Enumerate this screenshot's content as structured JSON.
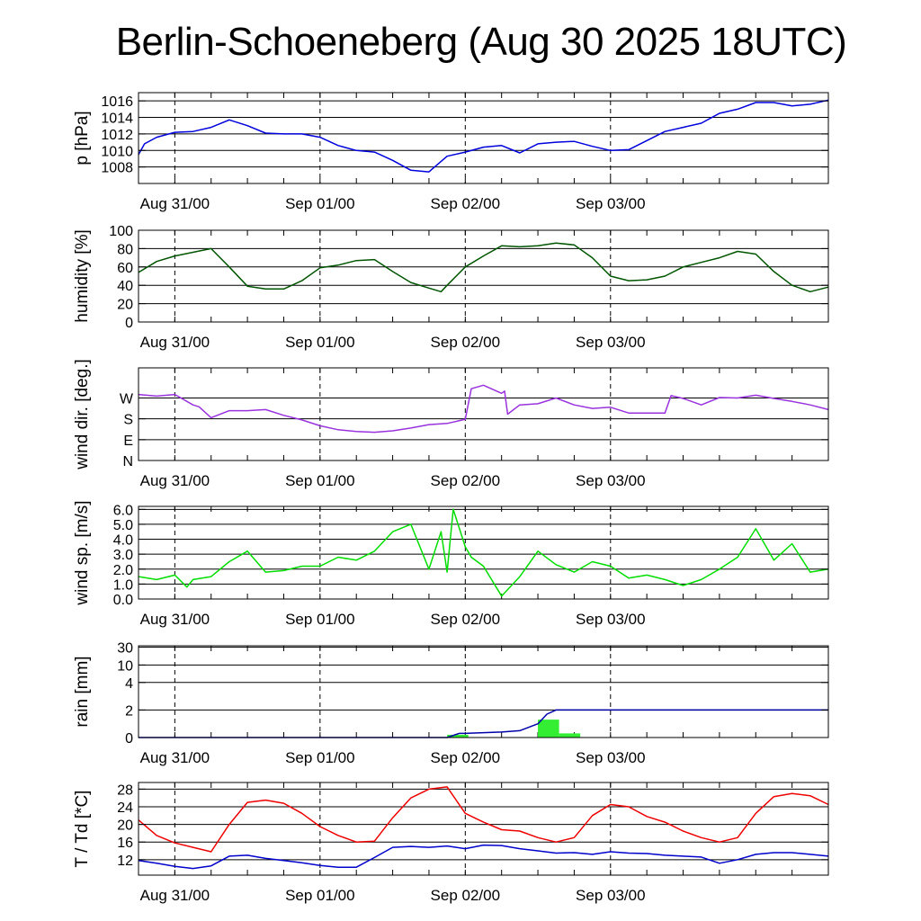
{
  "title": "Berlin-Schoeneberg (Aug 30 2025 18UTC)",
  "chart_data": [
    {
      "id": "pressure",
      "type": "line",
      "ylabel": "p [hPa]",
      "color": "#0000dd",
      "ylim": [
        1006,
        1017
      ],
      "yticks": [
        1008,
        1010,
        1012,
        1014,
        1016
      ],
      "ytick_labels": [
        "1008",
        "1010",
        "1012",
        "1014",
        "1016"
      ],
      "grid_lines": [
        1008,
        1010,
        1012,
        1014,
        1016
      ],
      "x": [
        0,
        1,
        3,
        6,
        9,
        12,
        15,
        18,
        21,
        24,
        27,
        30,
        33,
        36,
        39,
        42,
        45,
        48,
        51,
        54,
        57,
        60,
        63,
        66,
        69,
        72,
        75,
        78,
        81,
        84,
        87,
        90,
        93,
        96,
        99,
        102,
        105,
        108,
        111,
        114
      ],
      "y": [
        1009.5,
        1010.8,
        1011.6,
        1012.2,
        1012.3,
        1012.8,
        1013.7,
        1013.0,
        1012.1,
        1012.0,
        1012.0,
        1011.6,
        1010.6,
        1010.0,
        1009.8,
        1008.8,
        1007.6,
        1007.4,
        1009.3,
        1009.8,
        1010.4,
        1010.6,
        1009.7,
        1010.8,
        1011.0,
        1011.1,
        1010.5,
        1010.0,
        1010.1,
        1011.2,
        1012.3,
        1012.8,
        1013.3,
        1014.5,
        1015.0,
        1015.8,
        1015.8,
        1015.4,
        1015.6,
        1016.1
      ]
    },
    {
      "id": "humidity",
      "type": "line",
      "ylabel": "humidity [%]",
      "color": "#005500",
      "ylim": [
        0,
        100
      ],
      "yticks": [
        0,
        20,
        40,
        60,
        80,
        100
      ],
      "ytick_labels": [
        "0",
        "20",
        "40",
        "60",
        "80",
        "100"
      ],
      "grid_lines": [
        20,
        40,
        60,
        80
      ],
      "x": [
        0,
        3,
        6,
        9,
        12,
        15,
        18,
        21,
        24,
        27,
        30,
        33,
        36,
        39,
        42,
        45,
        48,
        50,
        51,
        54,
        57,
        60,
        63,
        66,
        69,
        72,
        75,
        78,
        81,
        84,
        87,
        90,
        93,
        96,
        99,
        102,
        105,
        108,
        111,
        114
      ],
      "y": [
        54,
        66,
        72,
        76,
        80,
        60,
        39,
        36,
        36,
        45,
        59,
        62,
        67,
        68,
        55,
        43,
        37,
        33,
        40,
        60,
        72,
        83,
        82,
        83,
        86,
        84,
        70,
        50,
        45,
        46,
        50,
        60,
        65,
        70,
        77,
        74,
        55,
        40,
        33,
        38
      ]
    },
    {
      "id": "wind_direction",
      "type": "line",
      "ylabel": "wind dir. [deg.]",
      "color": "#9933dd",
      "ylim": [
        0,
        400
      ],
      "yticks": [
        0,
        90,
        180,
        270
      ],
      "ytick_labels": [
        "N",
        "E",
        "S",
        "W"
      ],
      "grid_lines": [
        90,
        180,
        270
      ],
      "x": [
        0,
        3,
        6,
        9,
        10,
        12,
        15,
        18,
        21,
        24,
        27,
        30,
        33,
        36,
        39,
        42,
        45,
        48,
        51,
        54,
        55,
        57,
        60,
        60.5,
        61,
        63,
        66,
        69,
        72,
        75,
        78,
        81,
        84,
        87,
        88,
        90,
        93,
        96,
        99,
        102,
        105,
        108,
        111,
        114
      ],
      "y": [
        285,
        278,
        285,
        240,
        232,
        185,
        215,
        215,
        220,
        195,
        175,
        150,
        133,
        125,
        122,
        128,
        140,
        155,
        160,
        178,
        310,
        325,
        290,
        300,
        200,
        240,
        245,
        270,
        240,
        225,
        230,
        205,
        205,
        205,
        280,
        268,
        240,
        272,
        270,
        282,
        268,
        255,
        240,
        220
      ]
    },
    {
      "id": "wind_speed",
      "type": "line",
      "ylabel": "wind sp. [m/s]",
      "color": "#00dd00",
      "ylim": [
        0,
        6.2
      ],
      "yticks": [
        0,
        1,
        2,
        3,
        4,
        5,
        6
      ],
      "ytick_labels": [
        "0.0",
        "1.0",
        "2.0",
        "3.0",
        "4.0",
        "5.0",
        "6.0"
      ],
      "grid_lines": [
        1,
        2,
        3,
        4,
        5,
        6
      ],
      "x": [
        0,
        3,
        6,
        8,
        9,
        12,
        15,
        18,
        21,
        24,
        27,
        30,
        33,
        36,
        39,
        42,
        45,
        48,
        50,
        51,
        52,
        54,
        55,
        57,
        60,
        63,
        66,
        69,
        72,
        75,
        78,
        81,
        84,
        87,
        90,
        93,
        96,
        99,
        102,
        105,
        108,
        111,
        114
      ],
      "y": [
        1.5,
        1.3,
        1.6,
        0.8,
        1.3,
        1.5,
        2.5,
        3.2,
        1.8,
        1.9,
        2.2,
        2.2,
        2.8,
        2.6,
        3.2,
        4.5,
        5.0,
        2.0,
        4.5,
        1.8,
        6.0,
        3.5,
        2.8,
        2.2,
        0.2,
        1.5,
        3.2,
        2.3,
        1.8,
        2.5,
        2.2,
        1.4,
        1.6,
        1.3,
        0.9,
        1.3,
        2.0,
        2.8,
        4.7,
        2.6,
        3.7,
        1.8,
        2.0
      ]
    },
    {
      "id": "rain",
      "type": "bar",
      "ylabel": "rain [mm]",
      "color": "#33ee33",
      "cumulative_color": "#0000aa",
      "ylim_display": [
        0,
        30
      ],
      "yticks": [
        0,
        2,
        4,
        10,
        30
      ],
      "ytick_labels": [
        "0",
        "2",
        "4",
        "10",
        "30"
      ],
      "grid_lines": [
        2,
        4,
        10,
        30
      ],
      "bars": [
        {
          "x_start": 51,
          "x_end": 54.5,
          "value": 0.2
        },
        {
          "x_start": 66,
          "x_end": 69.5,
          "value": 1.3
        },
        {
          "x_start": 69.5,
          "x_end": 73,
          "value": 0.3
        }
      ],
      "cumulative_x": [
        0,
        51,
        53,
        54,
        60,
        63,
        66,
        67.5,
        69,
        114
      ],
      "cumulative_y": [
        0,
        0,
        0.3,
        0.3,
        0.4,
        0.5,
        1.0,
        1.7,
        2.0,
        2.0
      ]
    },
    {
      "id": "temperature",
      "type": "line",
      "ylabel": "T / Td [*C]",
      "ylim": [
        8.5,
        29.5
      ],
      "yticks": [
        12,
        16,
        20,
        24,
        28
      ],
      "ytick_labels": [
        "12",
        "16",
        "20",
        "24",
        "28"
      ],
      "grid_lines": [
        12,
        16,
        20,
        24,
        28
      ],
      "series": [
        {
          "id": "T",
          "color": "#ee0000",
          "x": [
            0,
            3,
            6,
            9,
            12,
            15,
            18,
            21,
            24,
            27,
            30,
            33,
            36,
            39,
            42,
            45,
            48,
            51,
            54,
            57,
            60,
            63,
            66,
            69,
            72,
            75,
            78,
            81,
            84,
            87,
            90,
            93,
            96,
            99,
            102,
            105,
            108,
            111,
            114
          ],
          "y": [
            21,
            17.5,
            15.8,
            14.8,
            13.8,
            20,
            25,
            25.5,
            24.8,
            22.5,
            19.5,
            17.5,
            16,
            16.2,
            21.5,
            26,
            28,
            28.5,
            22.5,
            20.5,
            18.8,
            18.5,
            17,
            16,
            17,
            22,
            24.5,
            24,
            21.8,
            20.5,
            18.5,
            17,
            16,
            17,
            22.5,
            26.3,
            27,
            26.5,
            24.5
          ]
        },
        {
          "id": "Td",
          "color": "#0000cc",
          "x": [
            0,
            3,
            6,
            9,
            12,
            15,
            18,
            21,
            24,
            27,
            30,
            33,
            36,
            39,
            42,
            45,
            48,
            51,
            54,
            57,
            60,
            63,
            66,
            69,
            72,
            75,
            78,
            81,
            84,
            87,
            90,
            93,
            96,
            99,
            102,
            105,
            108,
            111,
            114
          ],
          "y": [
            11.8,
            11.2,
            10.5,
            10,
            10.6,
            12.8,
            13,
            12.3,
            11.8,
            11.3,
            10.7,
            10.3,
            10.3,
            12.5,
            14.8,
            15,
            14.8,
            15.1,
            14.5,
            15.3,
            15.2,
            14.5,
            14,
            13.5,
            13.6,
            13.2,
            13.8,
            13.5,
            13.4,
            13,
            12.8,
            12.6,
            11.2,
            12,
            13.2,
            13.6,
            13.6,
            13.2,
            12.8
          ]
        }
      ]
    }
  ],
  "x_axis": {
    "unit": "hours since Aug 30 18UTC",
    "range": [
      0,
      114
    ],
    "date_ticks": [
      6,
      30,
      54,
      78
    ],
    "date_labels": [
      "Aug 31/00",
      "Sep 01/00",
      "Sep 02/00",
      "Sep 03/00"
    ]
  }
}
